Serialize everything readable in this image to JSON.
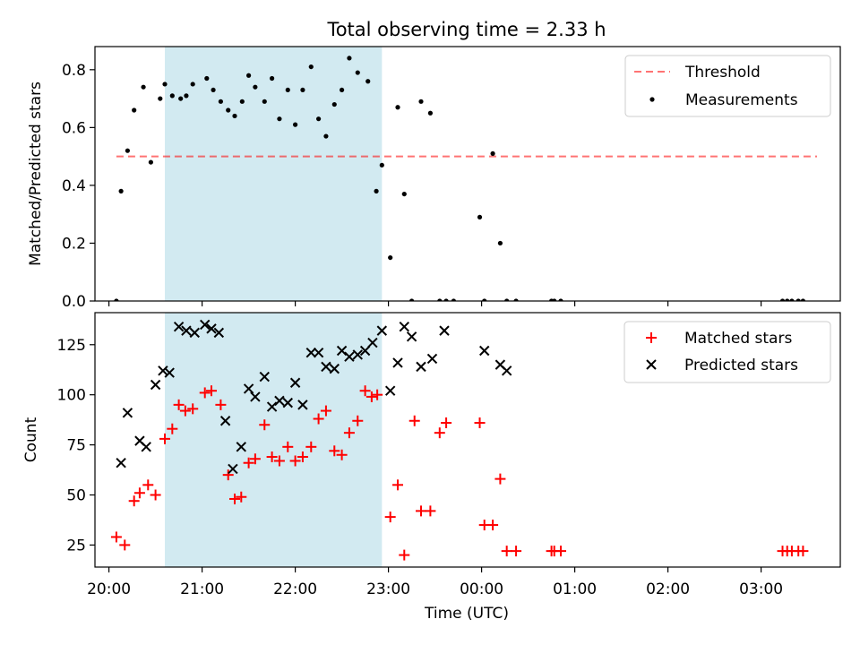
{
  "chart_data": {
    "type": "scatter",
    "title": "Total observing time = 2.33 h",
    "xlabel": "Time (UTC)",
    "x_tick_labels": [
      "20:00",
      "21:00",
      "22:00",
      "23:00",
      "00:00",
      "01:00",
      "02:00",
      "03:00"
    ],
    "x_ticks_hours": [
      20,
      21,
      22,
      23,
      24,
      25,
      26,
      27
    ],
    "xlim_hours": [
      19.85,
      27.85
    ],
    "shaded_interval_hours": [
      20.6,
      22.93
    ],
    "shaded_color": "#add8e6",
    "panels": [
      {
        "ylabel": "Matched/Predicted stars",
        "ylim": [
          0,
          0.88
        ],
        "y_ticks": [
          0.0,
          0.2,
          0.4,
          0.6,
          0.8
        ],
        "y_tick_labels": [
          "0.0",
          "0.2",
          "0.4",
          "0.6",
          "0.8"
        ],
        "legend_position": "top-right",
        "threshold": {
          "name": "Threshold",
          "value": 0.5,
          "x_range_hours": [
            20.08,
            27.6
          ],
          "color": "#ff0000"
        },
        "series": [
          {
            "name": "Measurements",
            "marker": "dot",
            "color": "#000000",
            "x_hours": [
              20.08,
              20.13,
              20.2,
              20.27,
              20.37,
              20.45,
              20.55,
              20.6,
              20.68,
              20.77,
              20.83,
              20.9,
              21.05,
              21.12,
              21.2,
              21.28,
              21.35,
              21.43,
              21.5,
              21.57,
              21.67,
              21.75,
              21.83,
              21.92,
              22.0,
              22.08,
              22.17,
              22.25,
              22.33,
              22.42,
              22.5,
              22.58,
              22.67,
              22.78,
              22.87,
              22.93,
              23.02,
              23.1,
              23.17,
              23.25,
              23.35,
              23.45,
              23.55,
              23.62,
              23.7,
              23.98,
              24.03,
              24.12,
              24.2,
              24.27,
              24.37,
              24.75,
              24.78,
              24.85,
              27.23,
              27.28,
              27.33,
              27.4,
              27.45
            ],
            "y_values": [
              0,
              0.38,
              0.52,
              0.66,
              0.74,
              0.48,
              0.7,
              0.75,
              0.71,
              0.7,
              0.71,
              0.75,
              0.77,
              0.73,
              0.69,
              0.66,
              0.64,
              0.69,
              0.78,
              0.74,
              0.69,
              0.77,
              0.63,
              0.73,
              0.61,
              0.73,
              0.81,
              0.63,
              0.57,
              0.68,
              0.73,
              0.84,
              0.79,
              0.76,
              0.38,
              0.47,
              0.15,
              0.67,
              0.37,
              0,
              0.69,
              0.65,
              0,
              0,
              0,
              0.29,
              0,
              0.51,
              0.2,
              0,
              0,
              0,
              0,
              0,
              0,
              0,
              0,
              0,
              0
            ]
          }
        ]
      },
      {
        "ylabel": "Count",
        "ylim": [
          14,
          141
        ],
        "y_ticks": [
          25,
          50,
          75,
          100,
          125
        ],
        "y_tick_labels": [
          "25",
          "50",
          "75",
          "100",
          "125"
        ],
        "legend_position": "top-right",
        "series": [
          {
            "name": "Matched stars",
            "marker": "plus",
            "color": "#ff0000",
            "x_hours": [
              20.08,
              20.17,
              20.27,
              20.33,
              20.42,
              20.5,
              20.6,
              20.68,
              20.75,
              20.82,
              20.9,
              21.03,
              21.1,
              21.2,
              21.28,
              21.35,
              21.42,
              21.5,
              21.57,
              21.67,
              21.75,
              21.83,
              21.92,
              22.0,
              22.08,
              22.17,
              22.25,
              22.33,
              22.42,
              22.5,
              22.58,
              22.67,
              22.75,
              22.82,
              22.88,
              23.02,
              23.1,
              23.17,
              23.28,
              23.35,
              23.45,
              23.55,
              23.62,
              23.98,
              24.03,
              24.12,
              24.2,
              24.27,
              24.37,
              24.75,
              24.78,
              24.85,
              27.23,
              27.28,
              27.33,
              27.4,
              27.45
            ],
            "y_values": [
              29,
              25,
              47,
              51,
              55,
              50,
              78,
              83,
              95,
              92,
              93,
              101,
              102,
              95,
              60,
              48,
              49,
              66,
              68,
              85,
              69,
              67,
              74,
              67,
              69,
              74,
              88,
              92,
              72,
              70,
              81,
              87,
              102,
              99,
              100,
              39,
              55,
              20,
              87,
              42,
              42,
              81,
              86,
              86,
              35,
              35,
              58,
              22,
              22,
              22,
              22,
              22,
              22,
              22,
              22,
              22,
              22
            ]
          },
          {
            "name": "Predicted stars",
            "marker": "x",
            "color": "#000000",
            "x_hours": [
              20.13,
              20.2,
              20.33,
              20.4,
              20.5,
              20.58,
              20.65,
              20.75,
              20.83,
              20.92,
              21.03,
              21.1,
              21.18,
              21.25,
              21.33,
              21.42,
              21.5,
              21.57,
              21.67,
              21.75,
              21.83,
              21.92,
              22.0,
              22.08,
              22.17,
              22.25,
              22.33,
              22.42,
              22.5,
              22.58,
              22.67,
              22.75,
              22.83,
              22.93,
              23.02,
              23.1,
              23.17,
              23.25,
              23.35,
              23.47,
              23.6,
              24.03,
              24.2,
              24.27
            ],
            "y_values": [
              66,
              91,
              77,
              74,
              105,
              112,
              111,
              134,
              132,
              131,
              135,
              133,
              131,
              87,
              63,
              74,
              103,
              99,
              109,
              94,
              97,
              96,
              106,
              95,
              121,
              121,
              114,
              113,
              122,
              119,
              120,
              122,
              126,
              132,
              102,
              116,
              134,
              129,
              114,
              118,
              132,
              122,
              115,
              112
            ]
          }
        ]
      }
    ]
  }
}
